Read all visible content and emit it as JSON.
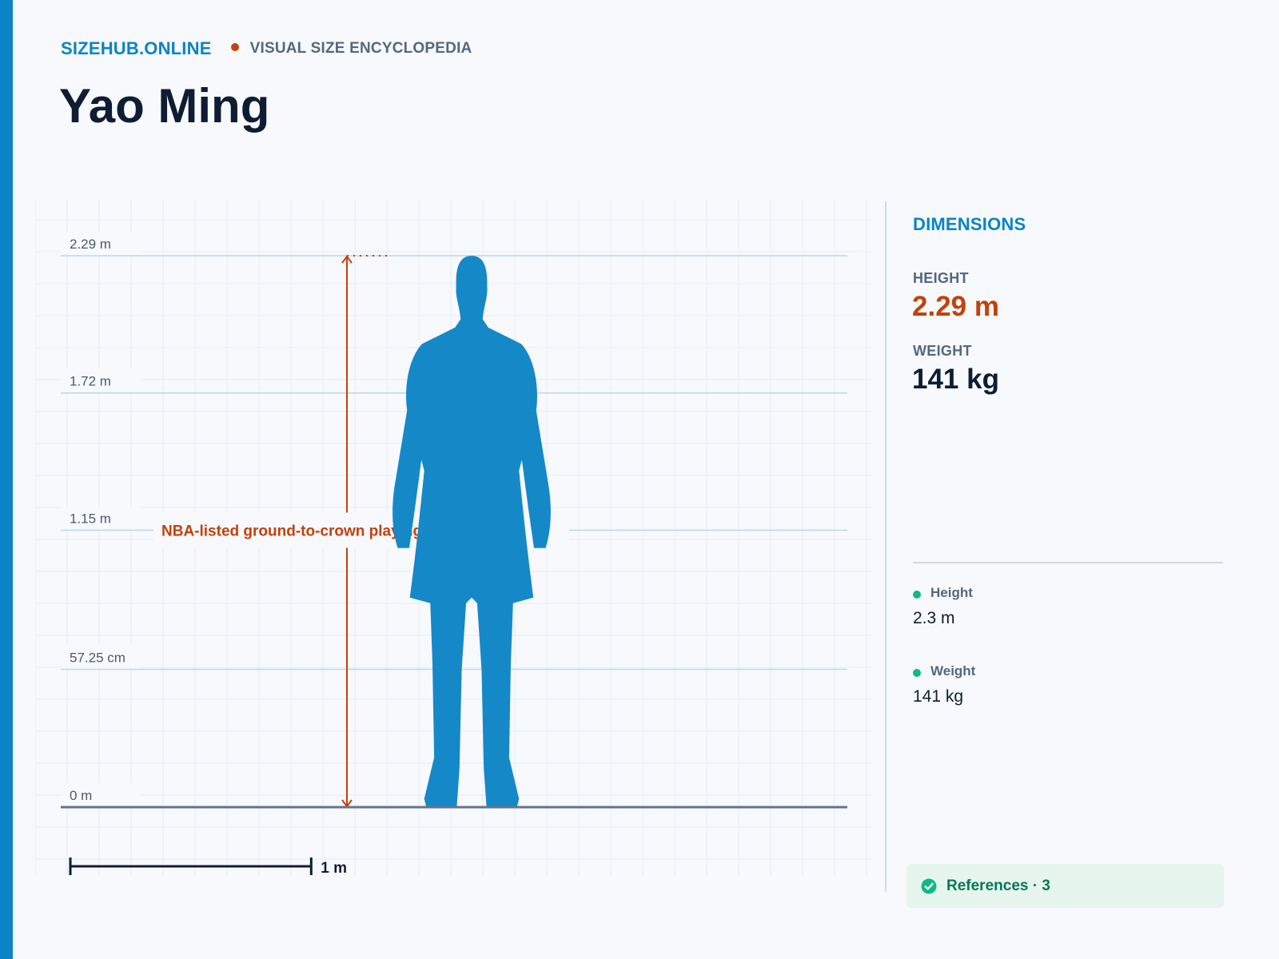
{
  "brand": {
    "name": "SIZEHUB.ONLINE",
    "tagline": "VISUAL SIZE ENCYCLOPEDIA",
    "accent_color": "#0a84c6",
    "dot_color": "#c2410c"
  },
  "page": {
    "title": "Yao Ming"
  },
  "chart": {
    "ticks": [
      "2.29 m",
      "1.72 m",
      "1.15 m",
      "57.25 cm",
      "0 m"
    ],
    "annotation": "NBA-listed ground-to-crown playing height, in m",
    "scale_label": "1 m",
    "figure_icon": "person-silhouette-icon",
    "figure_color": "#1589c8",
    "measure_color": "#c2410c"
  },
  "chart_data": {
    "type": "bar",
    "categories": [
      "Yao Ming"
    ],
    "values": [
      2.29
    ],
    "ylabel": "",
    "ylim": [
      0,
      2.29
    ],
    "yticks": [
      0,
      0.5725,
      1.15,
      1.72,
      2.29
    ],
    "scale_bar_m": 1,
    "grid": true
  },
  "panel": {
    "heading": "DIMENSIONS",
    "height_label": "HEIGHT",
    "height_value": "2.29 m",
    "weight_label": "WEIGHT",
    "weight_value": "141 kg",
    "stats": [
      {
        "name": "Height",
        "value": "2.3 m",
        "dot_color": "#10b981"
      },
      {
        "name": "Weight",
        "value": "141 kg",
        "dot_color": "#10b981"
      }
    ],
    "references": {
      "label": "References · 3",
      "icon": "check-circle-icon",
      "color": "#047857"
    }
  }
}
